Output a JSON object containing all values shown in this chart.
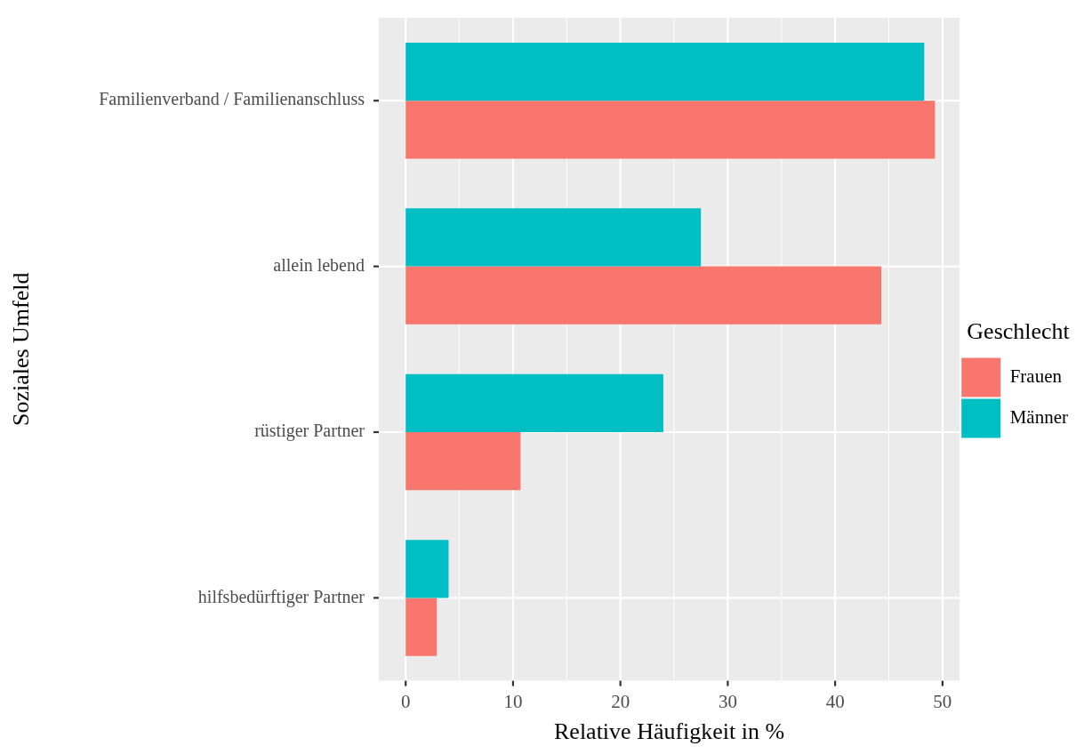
{
  "chart_data": {
    "type": "bar",
    "orientation": "horizontal",
    "xlabel": "Relative Häufigkeit in %",
    "ylabel": "Soziales Umfeld",
    "legend_title": "Geschlecht",
    "categories": [
      "Familienverband / Familienanschluss",
      "allein lebend",
      "rüstiger Partner",
      "hilfsbedürftiger Partner"
    ],
    "series": [
      {
        "name": "Frauen",
        "color": "#f8766d",
        "values": [
          49.3,
          44.3,
          10.7,
          2.9
        ]
      },
      {
        "name": "Männer",
        "color": "#00bfc4",
        "values": [
          48.3,
          27.5,
          24.0,
          4.0
        ]
      }
    ],
    "xlim": [
      -2.5,
      51.6
    ],
    "xticks": [
      0,
      10,
      20,
      30,
      40,
      50
    ],
    "grid": true,
    "legend": "right"
  }
}
